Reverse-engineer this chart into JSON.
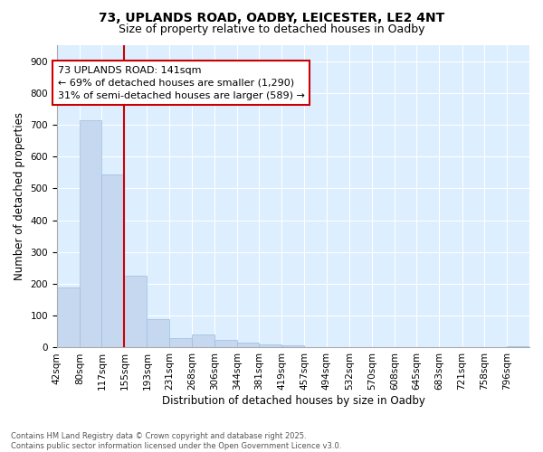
{
  "title_line1": "73, UPLANDS ROAD, OADBY, LEICESTER, LE2 4NT",
  "title_line2": "Size of property relative to detached houses in Oadby",
  "xlabel": "Distribution of detached houses by size in Oadby",
  "ylabel": "Number of detached properties",
  "bar_color": "#c5d8f0",
  "bar_edge_color": "#9bbede",
  "bg_color": "#ddeeff",
  "grid_color": "#ffffff",
  "annotation_text": "73 UPLANDS ROAD: 141sqm\n← 69% of detached houses are smaller (1,290)\n31% of semi-detached houses are larger (589) →",
  "annotation_box_color": "#ffffff",
  "annotation_border_color": "#cc0000",
  "vline_color": "#cc0000",
  "vline_x": 155,
  "categories": [
    "42sqm",
    "80sqm",
    "117sqm",
    "155sqm",
    "193sqm",
    "231sqm",
    "268sqm",
    "306sqm",
    "344sqm",
    "381sqm",
    "419sqm",
    "457sqm",
    "494sqm",
    "532sqm",
    "570sqm",
    "608sqm",
    "645sqm",
    "683sqm",
    "721sqm",
    "758sqm",
    "796sqm"
  ],
  "bin_edges": [
    42,
    80,
    117,
    155,
    193,
    231,
    268,
    306,
    344,
    381,
    419,
    457,
    494,
    532,
    570,
    608,
    645,
    683,
    721,
    758,
    796,
    834
  ],
  "values": [
    190,
    715,
    545,
    225,
    90,
    30,
    40,
    25,
    15,
    10,
    8,
    2,
    1,
    1,
    0,
    0,
    0,
    0,
    0,
    0,
    5
  ],
  "ylim": [
    0,
    950
  ],
  "yticks": [
    0,
    100,
    200,
    300,
    400,
    500,
    600,
    700,
    800,
    900
  ],
  "footnote": "Contains HM Land Registry data © Crown copyright and database right 2025.\nContains public sector information licensed under the Open Government Licence v3.0.",
  "title_fontsize": 10,
  "subtitle_fontsize": 9,
  "tick_fontsize": 7.5,
  "label_fontsize": 8.5
}
